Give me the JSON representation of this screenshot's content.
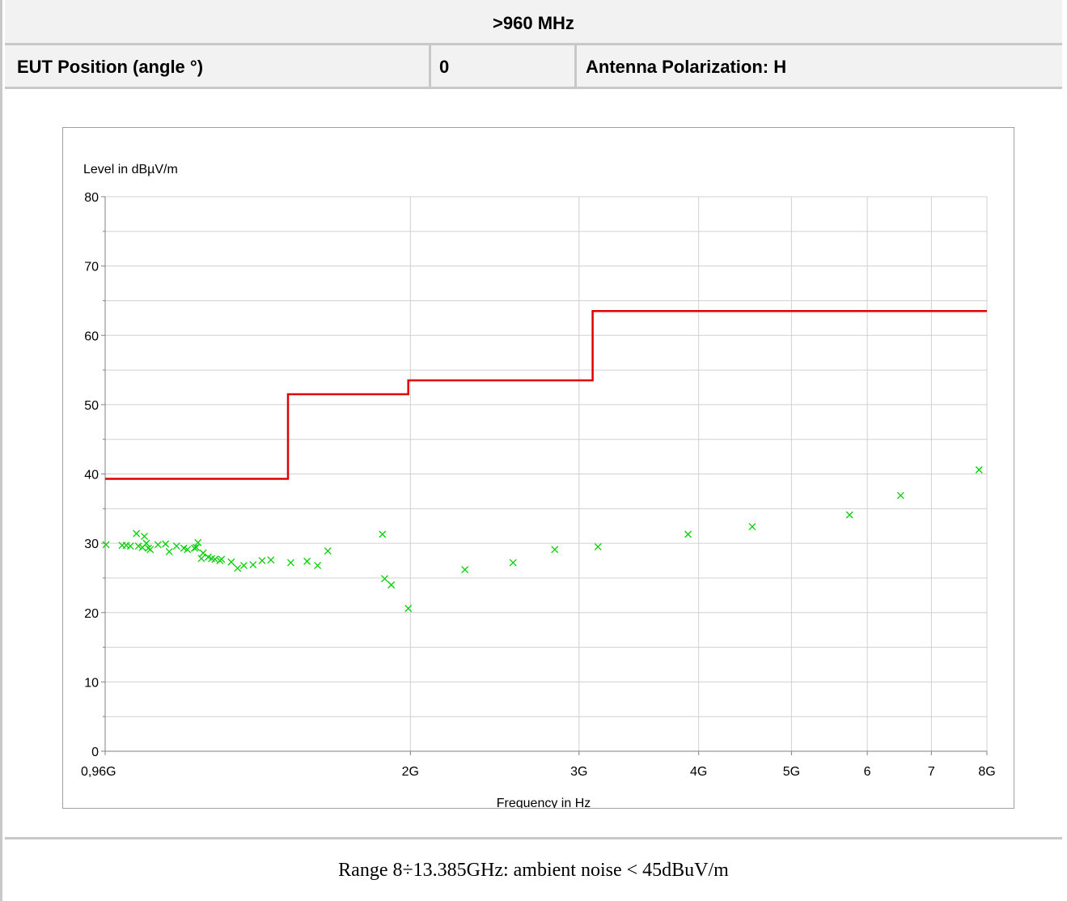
{
  "header": {
    "band": ">960 MHz",
    "position_label": "EUT Position (angle °)",
    "position_value": "0",
    "polarization": "Antenna Polarization:  H"
  },
  "footer": {
    "note": "Range 8÷13.385GHz: ambient noise < 45dBuV/m"
  },
  "colors": {
    "limit": "#e00000",
    "points": "#00d000",
    "grid": "#d0d0d0",
    "axis": "#808080"
  },
  "chart_data": {
    "type": "scatter",
    "ylabel": "Level in dBµV/m",
    "xlabel": "Frequency in Hz",
    "xscale": "log",
    "xlim": [
      0.96,
      8
    ],
    "ylim": [
      0,
      80
    ],
    "grid": true,
    "y_ticks": [
      0,
      10,
      20,
      30,
      40,
      50,
      60,
      70,
      80
    ],
    "x_ticks": [
      {
        "v": 0.96,
        "label": "0,96G"
      },
      {
        "v": 2,
        "label": "2G"
      },
      {
        "v": 3,
        "label": "3G"
      },
      {
        "v": 4,
        "label": "4G"
      },
      {
        "v": 5,
        "label": "5G"
      },
      {
        "v": 6,
        "label": "6"
      },
      {
        "v": 7,
        "label": "7"
      },
      {
        "v": 8,
        "label": "8G"
      }
    ],
    "series": [
      {
        "kind": "step-line",
        "x": [
          0.96,
          1.49,
          1.49,
          1.99,
          1.99,
          3.1,
          3.1,
          8
        ],
        "y": [
          39.3,
          39.3,
          51.5,
          51.5,
          53.5,
          53.5,
          63.5,
          63.5
        ]
      },
      {
        "kind": "points",
        "x": [
          0.962,
          1.0,
          1.01,
          1.02,
          1.035,
          1.04,
          1.05,
          1.055,
          1.06,
          1.065,
          1.07,
          1.09,
          1.11,
          1.12,
          1.14,
          1.16,
          1.17,
          1.19,
          1.195,
          1.2,
          1.21,
          1.215,
          1.23,
          1.24,
          1.25,
          1.265,
          1.27,
          1.3,
          1.32,
          1.34,
          1.37,
          1.4,
          1.43,
          1.5,
          1.56,
          1.6,
          1.64,
          1.87,
          1.88,
          1.91,
          1.99,
          2.28,
          2.56,
          2.83,
          3.14,
          3.9,
          4.55,
          5.75,
          6.5,
          7.85
        ],
        "y": [
          29.8,
          29.7,
          29.7,
          29.6,
          31.4,
          29.6,
          29.4,
          31.0,
          30.0,
          29.3,
          29.1,
          29.8,
          29.9,
          28.8,
          29.6,
          29.3,
          29.1,
          29.3,
          29.4,
          30.1,
          27.8,
          28.6,
          28.0,
          27.8,
          27.7,
          27.5,
          27.7,
          27.3,
          26.4,
          26.8,
          26.9,
          27.5,
          27.6,
          27.2,
          27.4,
          26.8,
          28.9,
          31.3,
          24.9,
          24.0,
          20.6,
          26.2,
          27.2,
          29.1,
          29.5,
          31.3,
          32.4,
          34.1,
          36.9,
          40.6
        ]
      }
    ]
  }
}
